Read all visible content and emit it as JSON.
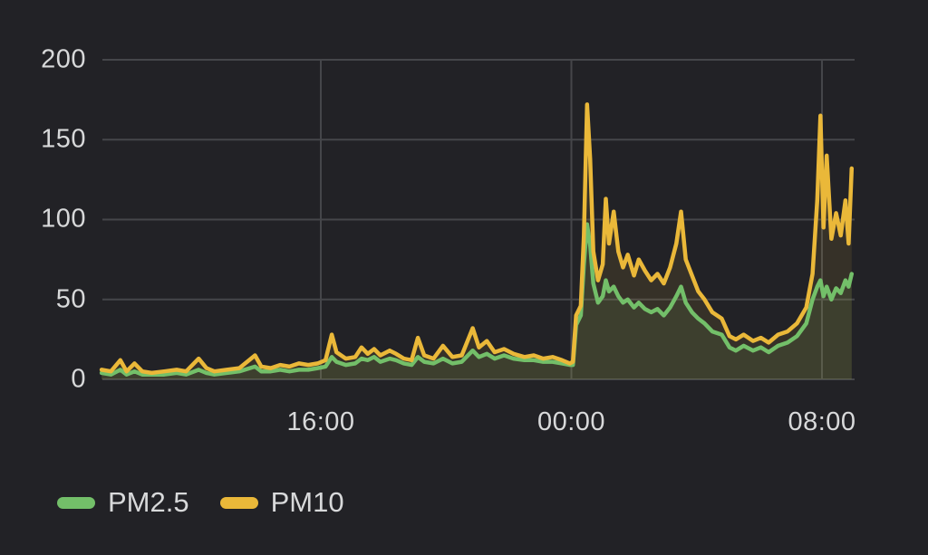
{
  "colors": {
    "background": "#222226",
    "grid": "#45464a",
    "text": "#d8d9da",
    "pm25": "#73BF69",
    "pm10": "#EAB839"
  },
  "legend": {
    "items": [
      {
        "label": "PM2.5",
        "color": "#73BF69"
      },
      {
        "label": "PM10",
        "color": "#EAB839"
      }
    ]
  },
  "chart_data": {
    "type": "line",
    "title": "",
    "xlabel": "",
    "ylabel": "",
    "ylim": [
      0,
      200
    ],
    "yticks": [
      200,
      150,
      100,
      50,
      0
    ],
    "xticks": [
      {
        "label": "16:00",
        "hour": 7
      },
      {
        "label": "00:00",
        "hour": 15
      },
      {
        "label": "08:00",
        "hour": 23
      }
    ],
    "grid": true,
    "legend_position": "bottom-left",
    "fill_opacity": 0.1,
    "line_width": 4.5,
    "x_hours": [
      0,
      0.3,
      0.6,
      0.8,
      1.05,
      1.3,
      1.6,
      2,
      2.4,
      2.7,
      3.1,
      3.35,
      3.6,
      4,
      4.4,
      4.9,
      5.1,
      5.4,
      5.7,
      6,
      6.3,
      6.6,
      6.9,
      7.15,
      7.35,
      7.5,
      7.8,
      8.1,
      8.3,
      8.5,
      8.7,
      8.9,
      9.2,
      9.4,
      9.65,
      9.9,
      10.1,
      10.3,
      10.6,
      10.9,
      11.2,
      11.5,
      11.85,
      12.05,
      12.3,
      12.55,
      12.85,
      13.15,
      13.5,
      13.8,
      14.1,
      14.4,
      14.7,
      14.95,
      15.05,
      15.15,
      15.3,
      15.4,
      15.5,
      15.6,
      15.7,
      15.85,
      16,
      16.1,
      16.2,
      16.35,
      16.5,
      16.65,
      16.8,
      17,
      17.15,
      17.35,
      17.55,
      17.75,
      17.95,
      18.15,
      18.35,
      18.5,
      18.65,
      18.85,
      19.05,
      19.25,
      19.5,
      19.8,
      20.05,
      20.25,
      20.5,
      20.8,
      21.05,
      21.3,
      21.6,
      21.9,
      22.2,
      22.5,
      22.7,
      22.85,
      22.95,
      23.05,
      23.15,
      23.3,
      23.45,
      23.6,
      23.75,
      23.85,
      23.95
    ],
    "series": [
      {
        "name": "PM2.5",
        "color": "#73BF69",
        "values": [
          4,
          3,
          6,
          3,
          5,
          3,
          3,
          3,
          4,
          3,
          6,
          4,
          3,
          4,
          5,
          8,
          5,
          5,
          6,
          5,
          6,
          6,
          7,
          8,
          14,
          11,
          9,
          10,
          13,
          12,
          14,
          11,
          13,
          12,
          10,
          9,
          14,
          11,
          10,
          13,
          10,
          11,
          18,
          14,
          16,
          13,
          15,
          13,
          12,
          12,
          11,
          11,
          10,
          9,
          9,
          34,
          40,
          72,
          97,
          84,
          60,
          48,
          52,
          62,
          55,
          58,
          52,
          48,
          50,
          45,
          48,
          44,
          42,
          44,
          40,
          45,
          52,
          58,
          48,
          42,
          38,
          35,
          30,
          28,
          20,
          18,
          21,
          18,
          20,
          17,
          21,
          23,
          27,
          35,
          50,
          58,
          62,
          52,
          58,
          50,
          57,
          54,
          62,
          58,
          66
        ]
      },
      {
        "name": "PM10",
        "color": "#EAB839",
        "values": [
          6,
          5,
          12,
          5,
          10,
          5,
          4,
          5,
          6,
          5,
          13,
          7,
          5,
          6,
          7,
          15,
          8,
          7,
          9,
          8,
          10,
          9,
          10,
          12,
          28,
          17,
          13,
          14,
          20,
          16,
          19,
          15,
          18,
          16,
          13,
          12,
          26,
          15,
          13,
          21,
          14,
          15,
          32,
          20,
          24,
          17,
          19,
          16,
          14,
          15,
          13,
          14,
          12,
          10,
          11,
          40,
          46,
          90,
          172,
          138,
          80,
          62,
          72,
          113,
          85,
          105,
          80,
          70,
          78,
          65,
          75,
          68,
          62,
          66,
          60,
          70,
          85,
          105,
          75,
          65,
          55,
          50,
          42,
          38,
          27,
          25,
          28,
          24,
          26,
          23,
          28,
          30,
          35,
          45,
          66,
          112,
          165,
          95,
          140,
          88,
          104,
          90,
          112,
          85,
          132
        ]
      }
    ]
  }
}
